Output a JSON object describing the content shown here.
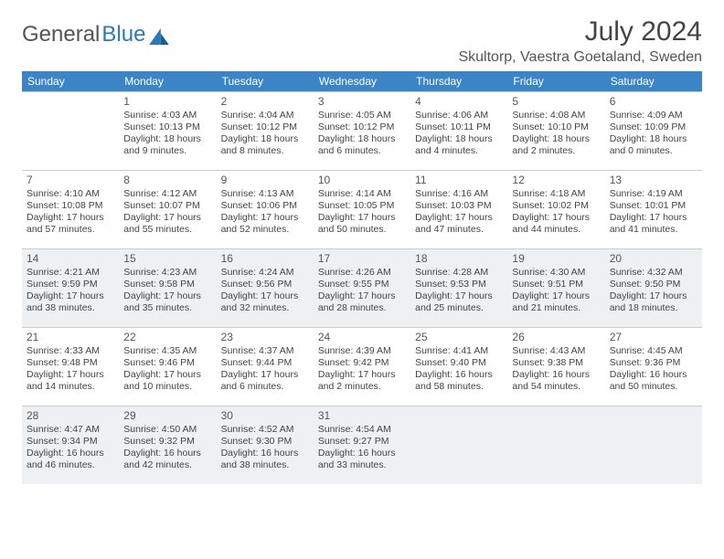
{
  "brand": {
    "part1": "General",
    "part2": "Blue"
  },
  "title": "July 2024",
  "location": "Skultorp, Vaestra Goetaland, Sweden",
  "colors": {
    "header_bg": "#3b85c6",
    "header_text": "#ffffff",
    "shaded_bg": "#eef1f4",
    "border": "#cccccc",
    "logo_blue": "#2a7ab9"
  },
  "weekdays": [
    "Sunday",
    "Monday",
    "Tuesday",
    "Wednesday",
    "Thursday",
    "Friday",
    "Saturday"
  ],
  "grid": {
    "shaded_rows": [
      2,
      4
    ],
    "rows": [
      [
        {
          "day": "",
          "text": ""
        },
        {
          "day": "1",
          "text": "Sunrise: 4:03 AM\nSunset: 10:13 PM\nDaylight: 18 hours and 9 minutes."
        },
        {
          "day": "2",
          "text": "Sunrise: 4:04 AM\nSunset: 10:12 PM\nDaylight: 18 hours and 8 minutes."
        },
        {
          "day": "3",
          "text": "Sunrise: 4:05 AM\nSunset: 10:12 PM\nDaylight: 18 hours and 6 minutes."
        },
        {
          "day": "4",
          "text": "Sunrise: 4:06 AM\nSunset: 10:11 PM\nDaylight: 18 hours and 4 minutes."
        },
        {
          "day": "5",
          "text": "Sunrise: 4:08 AM\nSunset: 10:10 PM\nDaylight: 18 hours and 2 minutes."
        },
        {
          "day": "6",
          "text": "Sunrise: 4:09 AM\nSunset: 10:09 PM\nDaylight: 18 hours and 0 minutes."
        }
      ],
      [
        {
          "day": "7",
          "text": "Sunrise: 4:10 AM\nSunset: 10:08 PM\nDaylight: 17 hours and 57 minutes."
        },
        {
          "day": "8",
          "text": "Sunrise: 4:12 AM\nSunset: 10:07 PM\nDaylight: 17 hours and 55 minutes."
        },
        {
          "day": "9",
          "text": "Sunrise: 4:13 AM\nSunset: 10:06 PM\nDaylight: 17 hours and 52 minutes."
        },
        {
          "day": "10",
          "text": "Sunrise: 4:14 AM\nSunset: 10:05 PM\nDaylight: 17 hours and 50 minutes."
        },
        {
          "day": "11",
          "text": "Sunrise: 4:16 AM\nSunset: 10:03 PM\nDaylight: 17 hours and 47 minutes."
        },
        {
          "day": "12",
          "text": "Sunrise: 4:18 AM\nSunset: 10:02 PM\nDaylight: 17 hours and 44 minutes."
        },
        {
          "day": "13",
          "text": "Sunrise: 4:19 AM\nSunset: 10:01 PM\nDaylight: 17 hours and 41 minutes."
        }
      ],
      [
        {
          "day": "14",
          "text": "Sunrise: 4:21 AM\nSunset: 9:59 PM\nDaylight: 17 hours and 38 minutes."
        },
        {
          "day": "15",
          "text": "Sunrise: 4:23 AM\nSunset: 9:58 PM\nDaylight: 17 hours and 35 minutes."
        },
        {
          "day": "16",
          "text": "Sunrise: 4:24 AM\nSunset: 9:56 PM\nDaylight: 17 hours and 32 minutes."
        },
        {
          "day": "17",
          "text": "Sunrise: 4:26 AM\nSunset: 9:55 PM\nDaylight: 17 hours and 28 minutes."
        },
        {
          "day": "18",
          "text": "Sunrise: 4:28 AM\nSunset: 9:53 PM\nDaylight: 17 hours and 25 minutes."
        },
        {
          "day": "19",
          "text": "Sunrise: 4:30 AM\nSunset: 9:51 PM\nDaylight: 17 hours and 21 minutes."
        },
        {
          "day": "20",
          "text": "Sunrise: 4:32 AM\nSunset: 9:50 PM\nDaylight: 17 hours and 18 minutes."
        }
      ],
      [
        {
          "day": "21",
          "text": "Sunrise: 4:33 AM\nSunset: 9:48 PM\nDaylight: 17 hours and 14 minutes."
        },
        {
          "day": "22",
          "text": "Sunrise: 4:35 AM\nSunset: 9:46 PM\nDaylight: 17 hours and 10 minutes."
        },
        {
          "day": "23",
          "text": "Sunrise: 4:37 AM\nSunset: 9:44 PM\nDaylight: 17 hours and 6 minutes."
        },
        {
          "day": "24",
          "text": "Sunrise: 4:39 AM\nSunset: 9:42 PM\nDaylight: 17 hours and 2 minutes."
        },
        {
          "day": "25",
          "text": "Sunrise: 4:41 AM\nSunset: 9:40 PM\nDaylight: 16 hours and 58 minutes."
        },
        {
          "day": "26",
          "text": "Sunrise: 4:43 AM\nSunset: 9:38 PM\nDaylight: 16 hours and 54 minutes."
        },
        {
          "day": "27",
          "text": "Sunrise: 4:45 AM\nSunset: 9:36 PM\nDaylight: 16 hours and 50 minutes."
        }
      ],
      [
        {
          "day": "28",
          "text": "Sunrise: 4:47 AM\nSunset: 9:34 PM\nDaylight: 16 hours and 46 minutes."
        },
        {
          "day": "29",
          "text": "Sunrise: 4:50 AM\nSunset: 9:32 PM\nDaylight: 16 hours and 42 minutes."
        },
        {
          "day": "30",
          "text": "Sunrise: 4:52 AM\nSunset: 9:30 PM\nDaylight: 16 hours and 38 minutes."
        },
        {
          "day": "31",
          "text": "Sunrise: 4:54 AM\nSunset: 9:27 PM\nDaylight: 16 hours and 33 minutes."
        },
        {
          "day": "",
          "text": ""
        },
        {
          "day": "",
          "text": ""
        },
        {
          "day": "",
          "text": ""
        }
      ]
    ]
  }
}
